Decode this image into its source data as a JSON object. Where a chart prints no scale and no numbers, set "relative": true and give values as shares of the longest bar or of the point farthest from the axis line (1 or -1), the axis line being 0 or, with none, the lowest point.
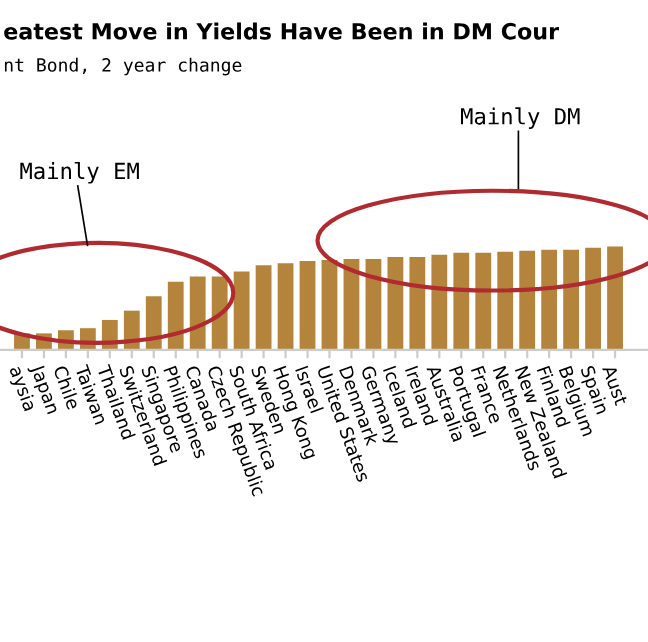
{
  "chart_data": {
    "type": "bar",
    "title": "eatest Move in Yields Have Been in DM Cour",
    "subtitle": "nt Bond, 2 year change",
    "relative": true,
    "color": "#b5843c",
    "categories": [
      "aysia",
      "Japan",
      "Chile",
      "Taiwan",
      "Thailand",
      "Switzerland",
      "Singapore",
      "Philippines",
      "Canada",
      "Czech Republic",
      "South Africa",
      "Sweden",
      "Hong Kong",
      "Israel",
      "United States",
      "Denmark",
      "Germany",
      "Iceland",
      "Ireland",
      "Australia",
      "Portugal",
      "France",
      "Netherlands",
      "New Zealand",
      "Finland",
      "Belgium",
      "Spain",
      "Aust"
    ],
    "values": [
      0.16,
      0.16,
      0.19,
      0.21,
      0.29,
      0.38,
      0.52,
      0.66,
      0.71,
      0.71,
      0.76,
      0.82,
      0.84,
      0.86,
      0.87,
      0.88,
      0.88,
      0.9,
      0.9,
      0.92,
      0.94,
      0.94,
      0.95,
      0.96,
      0.97,
      0.97,
      0.99,
      1
    ],
    "annotations": [
      "Mainly EM",
      "Mainly DM"
    ]
  }
}
